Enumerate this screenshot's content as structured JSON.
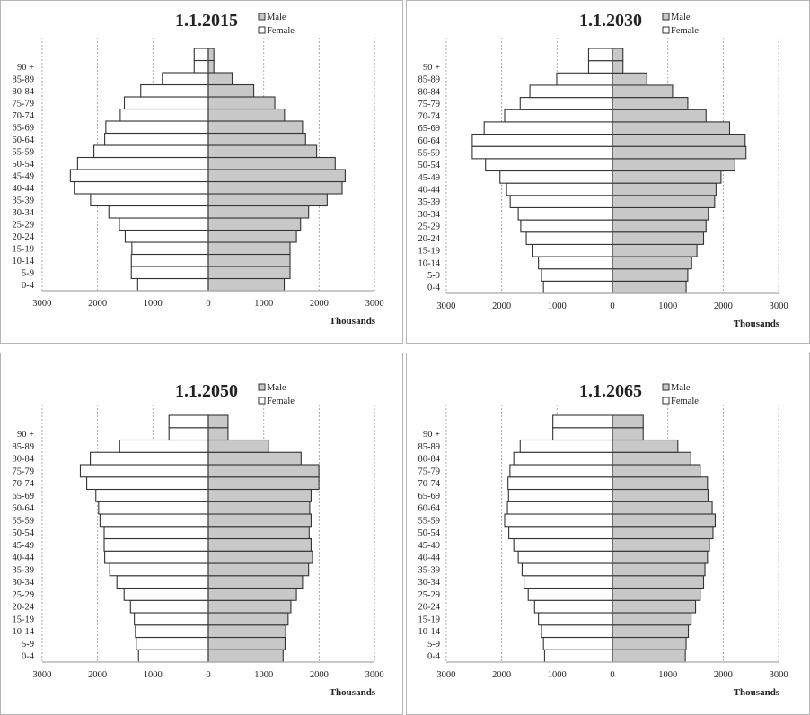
{
  "chart_data": [
    {
      "type": "bar",
      "orientation": "horizontal-pyramid",
      "title": "1.1.2015",
      "xlabel": "Thousands",
      "xlim": [
        -3000,
        3000
      ],
      "xticks": [
        "3000",
        "2000",
        "1000",
        "0",
        "1000",
        "2000",
        "3000"
      ],
      "grid": true,
      "legend": {
        "placement": "top-right",
        "entries": [
          "Male",
          "Female"
        ]
      },
      "categories": [
        "0-4",
        "5-9",
        "10-14",
        "15-19",
        "20-24",
        "25-29",
        "30-34",
        "35-39",
        "40-44",
        "45-49",
        "50-54",
        "55-59",
        "60-64",
        "65-69",
        "70-74",
        "75-79",
        "80-84",
        "85-89",
        "90 +",
        ""
      ],
      "series": [
        {
          "name": "Male",
          "color": "#c8c8c8",
          "values": [
            1370,
            1475,
            1475,
            1475,
            1590,
            1665,
            1810,
            2145,
            2415,
            2470,
            2290,
            1955,
            1755,
            1700,
            1375,
            1200,
            820,
            430,
            100,
            100
          ]
        },
        {
          "name": "Female",
          "color": "#ffffff",
          "values": [
            1275,
            1390,
            1390,
            1380,
            1500,
            1605,
            1795,
            2125,
            2420,
            2490,
            2360,
            2065,
            1870,
            1850,
            1590,
            1515,
            1220,
            830,
            255,
            255
          ]
        }
      ]
    },
    {
      "type": "bar",
      "orientation": "horizontal-pyramid",
      "title": "1.1.2030",
      "xlabel": "Thousands",
      "xlim": [
        -3000,
        3000
      ],
      "xticks": [
        "3000",
        "2000",
        "1000",
        "0",
        "1000",
        "2000",
        "3000"
      ],
      "grid": true,
      "legend": {
        "placement": "top-right",
        "entries": [
          "Male",
          "Female"
        ]
      },
      "categories": [
        "0-4",
        "5-9",
        "10-14",
        "15-19",
        "20-24",
        "25-29",
        "30-34",
        "35-39",
        "40-44",
        "45-49",
        "50-54",
        "55-59",
        "60-64",
        "65-69",
        "70-74",
        "75-79",
        "80-84",
        "85-89",
        "90 +",
        ""
      ],
      "series": [
        {
          "name": "Male",
          "color": "#c8c8c8",
          "values": [
            1330,
            1360,
            1430,
            1525,
            1645,
            1690,
            1730,
            1845,
            1870,
            1960,
            2210,
            2410,
            2395,
            2115,
            1690,
            1360,
            1085,
            620,
            190,
            190
          ]
        },
        {
          "name": "Female",
          "color": "#ffffff",
          "values": [
            1245,
            1280,
            1335,
            1450,
            1555,
            1655,
            1700,
            1845,
            1910,
            2030,
            2290,
            2530,
            2530,
            2315,
            1945,
            1665,
            1490,
            1005,
            430,
            430
          ]
        }
      ]
    },
    {
      "type": "bar",
      "orientation": "horizontal-pyramid",
      "title": "1.1.2050",
      "xlabel": "Thousands",
      "xlim": [
        -3000,
        3000
      ],
      "xticks": [
        "3000",
        "2000",
        "1000",
        "0",
        "1000",
        "2000",
        "3000"
      ],
      "grid": true,
      "legend": {
        "placement": "top-right",
        "entries": [
          "Male",
          "Female"
        ]
      },
      "categories": [
        "0-4",
        "5-9",
        "10-14",
        "15-19",
        "20-24",
        "25-29",
        "30-34",
        "35-39",
        "40-44",
        "45-49",
        "50-54",
        "55-59",
        "60-64",
        "65-69",
        "70-74",
        "75-79",
        "80-84",
        "85-89",
        "90 +",
        ""
      ],
      "series": [
        {
          "name": "Male",
          "color": "#c8c8c8",
          "values": [
            1350,
            1385,
            1395,
            1440,
            1490,
            1590,
            1700,
            1810,
            1880,
            1855,
            1820,
            1855,
            1830,
            1855,
            1995,
            1995,
            1675,
            1090,
            355,
            355
          ]
        },
        {
          "name": "Female",
          "color": "#ffffff",
          "values": [
            1260,
            1300,
            1315,
            1335,
            1405,
            1520,
            1650,
            1780,
            1870,
            1880,
            1880,
            1955,
            1980,
            2030,
            2195,
            2310,
            2130,
            1600,
            710,
            710
          ]
        }
      ]
    },
    {
      "type": "bar",
      "orientation": "horizontal-pyramid",
      "title": "1.1.2065",
      "xlabel": "Thousands",
      "xlim": [
        -3000,
        3000
      ],
      "xticks": [
        "3000",
        "2000",
        "1000",
        "0",
        "1000",
        "2000",
        "3000"
      ],
      "grid": true,
      "legend": {
        "placement": "top-right",
        "entries": [
          "Male",
          "Female"
        ]
      },
      "categories": [
        "0-4",
        "5-9",
        "10-14",
        "15-19",
        "20-24",
        "25-29",
        "30-34",
        "35-39",
        "40-44",
        "45-49",
        "50-54",
        "55-59",
        "60-64",
        "65-69",
        "70-74",
        "75-79",
        "80-84",
        "85-89",
        "90 +",
        ""
      ],
      "series": [
        {
          "name": "Male",
          "color": "#c8c8c8",
          "values": [
            1315,
            1330,
            1370,
            1420,
            1500,
            1585,
            1645,
            1670,
            1715,
            1750,
            1815,
            1855,
            1800,
            1725,
            1715,
            1585,
            1415,
            1180,
            555,
            555
          ]
        },
        {
          "name": "Female",
          "color": "#ffffff",
          "values": [
            1225,
            1245,
            1280,
            1335,
            1405,
            1520,
            1595,
            1630,
            1700,
            1780,
            1870,
            1945,
            1895,
            1875,
            1885,
            1850,
            1780,
            1665,
            1075,
            1075
          ]
        }
      ]
    }
  ]
}
